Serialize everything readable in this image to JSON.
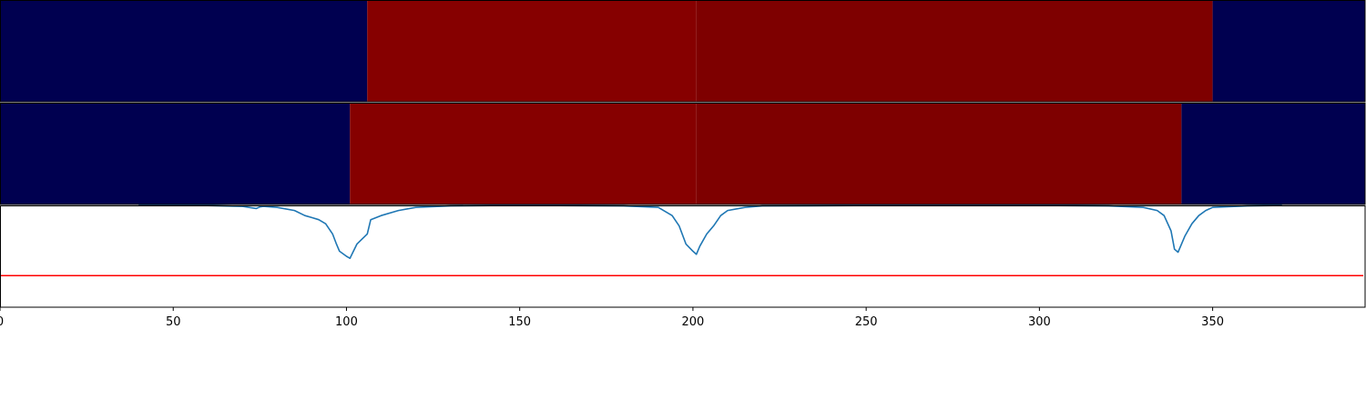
{
  "chart_data": {
    "type": "line",
    "xlim": [
      0,
      394
    ],
    "x_ticks": [
      0,
      50,
      100,
      150,
      200,
      250,
      300,
      350
    ],
    "x_tick_labels": [
      "0",
      "50",
      "100",
      "150",
      "200",
      "250",
      "300",
      "350"
    ],
    "grid": false,
    "legend": "none",
    "segment_rows": [
      {
        "segments": [
          {
            "start": 0,
            "end": 106,
            "color": "#000050"
          },
          {
            "start": 106,
            "end": 201,
            "color": "#860000"
          },
          {
            "start": 201,
            "end": 350,
            "color": "#7e0000"
          },
          {
            "start": 350,
            "end": 394,
            "color": "#000050"
          }
        ]
      },
      {
        "segments": [
          {
            "start": 0,
            "end": 101,
            "color": "#000050"
          },
          {
            "start": 101,
            "end": 201,
            "color": "#860000"
          },
          {
            "start": 201,
            "end": 341,
            "color": "#7e0000"
          },
          {
            "start": 341,
            "end": 394,
            "color": "#000050"
          }
        ]
      }
    ],
    "line_panel": {
      "ylim": [
        0,
        1
      ],
      "threshold": {
        "value": 0.31,
        "color": "#ff0000"
      },
      "series": [
        {
          "color": "#1f77b4",
          "x": [
            40,
            60,
            70,
            74,
            75,
            76,
            80,
            85,
            88,
            90,
            92,
            94,
            96,
            97,
            98,
            100,
            101,
            102,
            103,
            106,
            107,
            110,
            115,
            120,
            130,
            150,
            180,
            190,
            194,
            196,
            198,
            200,
            201,
            202,
            204,
            206,
            208,
            210,
            215,
            220,
            260,
            300,
            320,
            330,
            334,
            336,
            338,
            339,
            340,
            341,
            342,
            344,
            346,
            348,
            350,
            360,
            370
          ],
          "y": [
            1.0,
            0.998,
            0.99,
            0.97,
            0.985,
            0.99,
            0.98,
            0.95,
            0.9,
            0.88,
            0.86,
            0.82,
            0.72,
            0.63,
            0.55,
            0.5,
            0.48,
            0.55,
            0.62,
            0.72,
            0.86,
            0.9,
            0.95,
            0.98,
            0.995,
            1.0,
            0.995,
            0.98,
            0.9,
            0.8,
            0.62,
            0.55,
            0.52,
            0.6,
            0.72,
            0.8,
            0.9,
            0.95,
            0.98,
            0.995,
            1.0,
            1.0,
            0.995,
            0.98,
            0.95,
            0.9,
            0.75,
            0.57,
            0.54,
            0.62,
            0.7,
            0.82,
            0.9,
            0.95,
            0.98,
            0.995,
            1.0
          ]
        }
      ]
    }
  }
}
